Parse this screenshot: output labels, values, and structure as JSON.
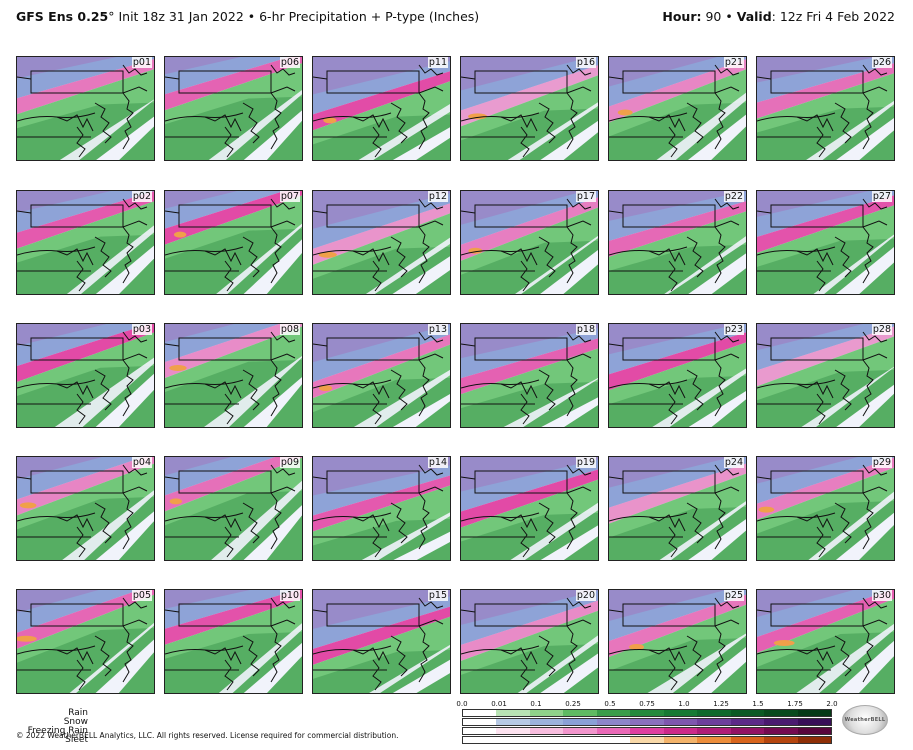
{
  "header": {
    "model": "GFS Ens 0.25",
    "degree": "°",
    "init_text": " Init 18z 31 Jan 2022 • 6-hr Precipitation + P-type (Inches)",
    "hour_label": "Hour:",
    "hour_value": " 90 • ",
    "valid_label": "Valid",
    "valid_value": ": 12z Fri 4 Feb 2022"
  },
  "panels": [
    "p01",
    "p06",
    "p11",
    "p16",
    "p21",
    "p26",
    "p02",
    "p07",
    "p12",
    "p17",
    "p22",
    "p27",
    "p03",
    "p08",
    "p13",
    "p18",
    "p23",
    "p28",
    "p04",
    "p09",
    "p14",
    "p19",
    "p24",
    "p29",
    "p05",
    "p10",
    "p15",
    "p20",
    "p25",
    "p30"
  ],
  "legend": {
    "ticks": [
      "0.0",
      "0.01",
      "0.1",
      "0.25",
      "0.5",
      "0.75",
      "1.0",
      "1.25",
      "1.5",
      "1.75",
      "2.0"
    ],
    "rows": [
      {
        "name": "Rain",
        "colors": [
          "#ffffff",
          "#b9e3b4",
          "#8fd18a",
          "#5fba62",
          "#3a9d4a",
          "#248a3c",
          "#177a33",
          "#0f6a2b",
          "#0b5a24",
          "#084a1d",
          "#053a16"
        ]
      },
      {
        "name": "Snow",
        "colors": [
          "#ffffff",
          "#b7c9e4",
          "#9cb2dc",
          "#8aa0d6",
          "#8d86c9",
          "#8a70bd",
          "#7e57ae",
          "#6e3f9c",
          "#5c2a88",
          "#4a1a70",
          "#380e58"
        ]
      },
      {
        "name": "Freezing Rain",
        "colors": [
          "#ffffff",
          "#fde3f0",
          "#f8bedf",
          "#f296cd",
          "#ea6ab8",
          "#df3fa0",
          "#cc2a8a",
          "#b01c77",
          "#921264",
          "#740a50",
          "#58063c"
        ]
      },
      {
        "name": "Sleet",
        "colors": [
          "#ffffff",
          "#ffffff",
          "#ffffff",
          "#ffffff",
          "#ffffff",
          "#f9d9a8",
          "#f3b36a",
          "#ec8d3b",
          "#d8641c",
          "#b5450e",
          "#8e2e06"
        ]
      }
    ]
  },
  "copyright": "© 2022 WeatherBELL Analytics, LLC. All rights reserved. License required for commercial distribution.",
  "logo_text": "WeatherBELL"
}
